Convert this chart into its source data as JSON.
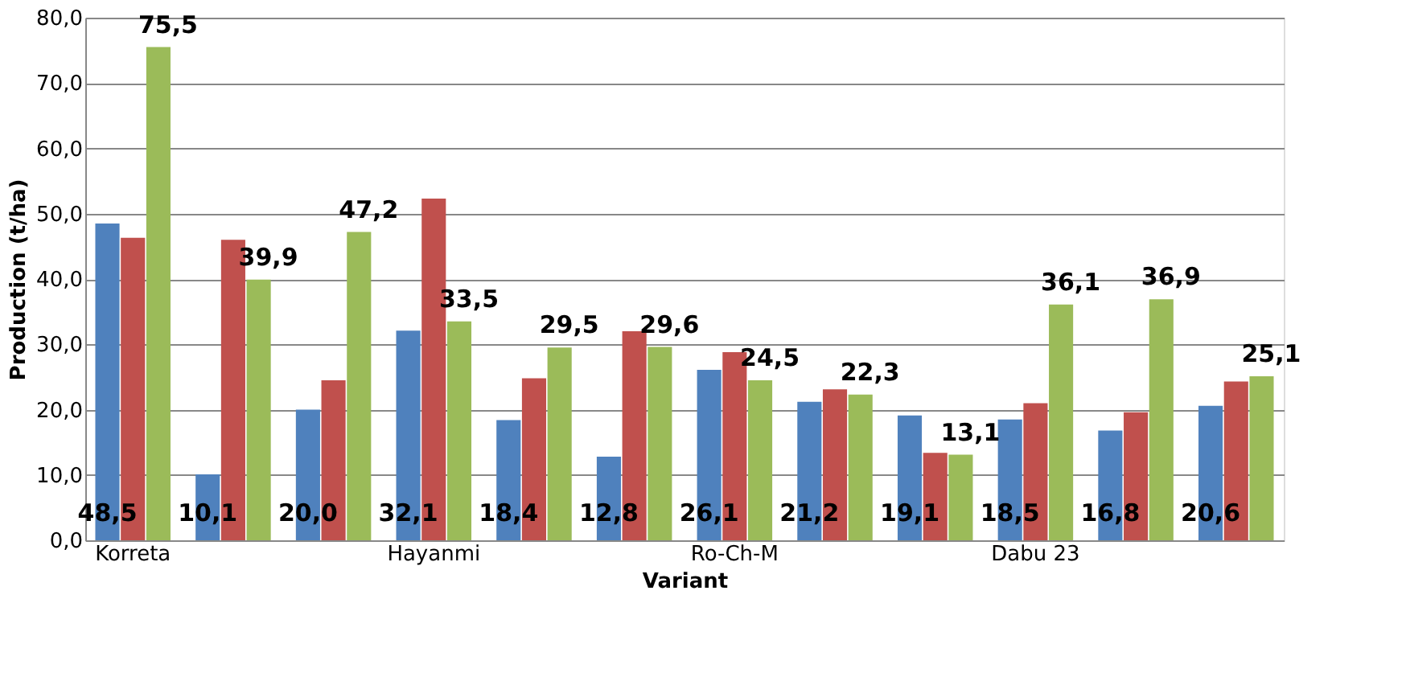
{
  "chart_data": {
    "type": "bar",
    "xlabel": "Variant",
    "ylabel": "Production (t/ha)",
    "categories": [
      "Korreta",
      null,
      null,
      "Hayanmi",
      null,
      null,
      "Ro-Ch-M",
      null,
      null,
      "Dabu 23",
      null,
      null
    ],
    "series": [
      {
        "color": "#4f81bd",
        "values": [
          48.5,
          10.1,
          20.0,
          32.1,
          18.4,
          12.8,
          26.1,
          21.2,
          19.1,
          18.5,
          16.8,
          20.6
        ],
        "value_labels": [
          "48,5",
          "10,1",
          "20,0",
          "32,1",
          "18,4",
          "12,8",
          "26,1",
          "21,2",
          "19,1",
          "18,5",
          "16,8",
          "20,6"
        ]
      },
      {
        "color": "#c0504d",
        "values": [
          46.3,
          46.0,
          24.5,
          52.3,
          24.8,
          32.0,
          28.8,
          23.1,
          13.4,
          21.0,
          19.6,
          24.3
        ]
      },
      {
        "color": "#9bbb59",
        "values": [
          75.5,
          39.9,
          47.2,
          33.5,
          29.5,
          29.6,
          24.5,
          22.3,
          13.1,
          36.1,
          36.9,
          25.1
        ],
        "value_labels": [
          "75,5",
          "39,9",
          "47,2",
          "33,5",
          "29,5",
          "29,6",
          "24,5",
          "22,3",
          "13,1",
          "36,1",
          "36,9",
          "25,1"
        ]
      }
    ],
    "ylim": [
      0,
      80
    ],
    "yticks": [
      {
        "value": 0,
        "label": "0,0"
      },
      {
        "value": 10,
        "label": "10,0"
      },
      {
        "value": 20,
        "label": "20,0"
      },
      {
        "value": 30,
        "label": "30,0"
      },
      {
        "value": 40,
        "label": "40,0"
      },
      {
        "value": 50,
        "label": "50,0"
      },
      {
        "value": 60,
        "label": "60,0"
      },
      {
        "value": 70,
        "label": "70,0"
      },
      {
        "value": 80,
        "label": "80,0"
      }
    ],
    "grid": "y"
  }
}
